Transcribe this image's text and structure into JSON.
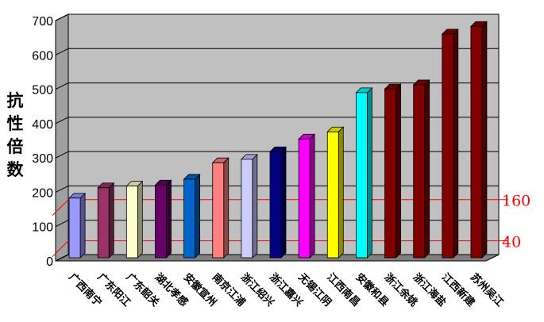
{
  "chart_data": {
    "type": "bar",
    "title": "",
    "xlabel": "",
    "ylabel": "抗性倍数",
    "ylim": [
      0,
      700
    ],
    "yticks": [
      "0",
      "100",
      "200",
      "300",
      "400",
      "500",
      "600",
      "700"
    ],
    "grid": true,
    "categories": [
      "广西南宁",
      "广东阳江",
      "广东韶关",
      "湖北孝感",
      "安徽宣州",
      "南京江浦",
      "浙江绍兴",
      "浙江嘉兴",
      "无锡江阴",
      "江西南昌",
      "安徽和县",
      "浙江余姚",
      "浙江海盐",
      "江西新建",
      "苏州吴江"
    ],
    "values": [
      190,
      220,
      225,
      228,
      245,
      293,
      303,
      325,
      362,
      383,
      497,
      508,
      520,
      668,
      690
    ],
    "colors": [
      "#9999ff",
      "#993366",
      "#ffffcc",
      "#660066",
      "#0066cc",
      "#ff8080",
      "#ccccff",
      "#000080",
      "#ff00ff",
      "#ffff00",
      "#00ffff",
      "#800000",
      "#800000",
      "#800000",
      "#800000"
    ],
    "reference_lines": [
      {
        "value": 160,
        "label": "160",
        "color": "#ff0000"
      },
      {
        "value": 40,
        "label": "40",
        "color": "#ff0000"
      }
    ]
  }
}
